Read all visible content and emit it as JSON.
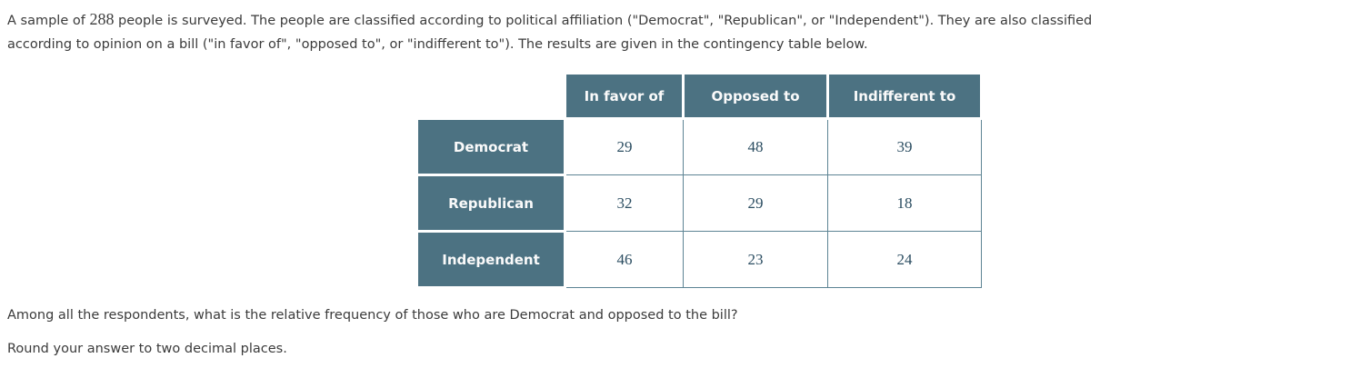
{
  "intro": {
    "prefix": "A sample of ",
    "sample_size": "288",
    "line1_rest": " people is surveyed. The people are classified according to political affiliation (\"Democrat\", \"Republican\", or \"Independent\"). They are also classified",
    "line2": "according to opinion on a bill (\"in favor of\", \"opposed to\", or \"indifferent to\"). The results are given in the contingency table below."
  },
  "contingency_table": {
    "column_headers": [
      "In favor of",
      "Opposed to",
      "Indifferent to"
    ],
    "rows": [
      {
        "label": "Democrat",
        "values": [
          "29",
          "48",
          "39"
        ]
      },
      {
        "label": "Republican",
        "values": [
          "32",
          "29",
          "18"
        ]
      },
      {
        "label": "Independent",
        "values": [
          "46",
          "23",
          "24"
        ]
      }
    ]
  },
  "question": "Among all the respondents, what is the relative frequency of those who are Democrat and opposed to the bill?",
  "instruction": "Round your answer to two decimal places.",
  "colors": {
    "header_background": "#4c7282",
    "header_text": "#fafafa",
    "cell_border": "#5d8494",
    "value_text": "#2b4d61",
    "body_text": "#3b3b3b"
  }
}
